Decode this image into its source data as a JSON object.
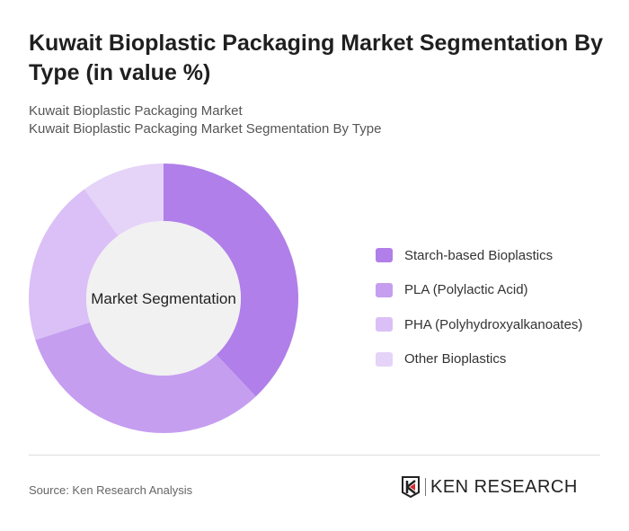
{
  "title": "Kuwait Bioplastic Packaging Market Segmentation By Type (in value %)",
  "subtitle1": "Kuwait Bioplastic Packaging Market",
  "subtitle2": "Kuwait Bioplastic Packaging Market Segmentation By Type",
  "source": "Source: Ken Research Analysis",
  "logo_text": "KEN RESEARCH",
  "chart_data": {
    "type": "pie",
    "variant": "donut",
    "center_label": "Market Segmentation",
    "categories": [
      "Starch-based Bioplastics",
      "PLA (Polylactic Acid)",
      "PHA (Polyhydroxyalkanoates)",
      "Other Bioplastics"
    ],
    "values": [
      38,
      32,
      20,
      10
    ],
    "colors": [
      "#b07fe9",
      "#c59ef0",
      "#dac0f6",
      "#e5d3f8"
    ],
    "legend_position": "right"
  }
}
